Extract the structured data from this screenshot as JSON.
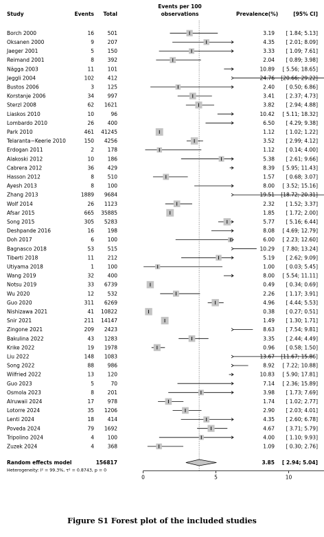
{
  "headers": {
    "study": "Study",
    "events": "Events",
    "total": "Total",
    "effect_line1": "Events per 100",
    "effect_line2": "observations",
    "prevalence": "Prevalence(%)",
    "ci": "[95% CI]"
  },
  "caption": "Figure S1 Forest plot of the included studies",
  "chart_data": {
    "type": "forest",
    "xlim": [
      0,
      20
    ],
    "xticks": [
      0,
      5,
      10,
      15
    ],
    "reference_line": 3.85,
    "studies": [
      {
        "study": "Borch 2000",
        "events": "16",
        "total": "501",
        "est": 3.19,
        "lo": 1.84,
        "hi": 5.13,
        "prev": "3.19",
        "ci": "[ 1.84; 5.13]",
        "w": 2.2
      },
      {
        "study": "Oksanen 2000",
        "events": "9",
        "total": "207",
        "est": 4.35,
        "lo": 2.01,
        "hi": 8.09,
        "prev": "4.35",
        "ci": "[ 2.01; 8.09]",
        "w": 2.0
      },
      {
        "study": "Jaeger 2001",
        "events": "5",
        "total": "150",
        "est": 3.33,
        "lo": 1.09,
        "hi": 7.61,
        "prev": "3.33",
        "ci": "[ 1.09; 7.61]",
        "w": 1.9
      },
      {
        "study": "Reimand 2001",
        "events": "8",
        "total": "392",
        "est": 2.04,
        "lo": 0.89,
        "hi": 3.98,
        "prev": "2.04",
        "ci": "[ 0.89; 3.98]",
        "w": 2.1
      },
      {
        "study": "Nägga 2003",
        "events": "11",
        "total": "101",
        "est": 10.89,
        "lo": 5.56,
        "hi": 18.65,
        "prev": "10.89",
        "ci": "[ 5.56; 18.65]",
        "w": 1.7
      },
      {
        "study": "Jeggli 2004",
        "events": "102",
        "total": "412",
        "est": 24.76,
        "lo": 20.66,
        "hi": 29.22,
        "prev": "24.76",
        "ci": "[20.66; 29.22]",
        "w": 2.0
      },
      {
        "study": "Bustos 2006",
        "events": "3",
        "total": "125",
        "est": 2.4,
        "lo": 0.5,
        "hi": 6.86,
        "prev": "2.40",
        "ci": "[ 0.50; 6.86]",
        "w": 1.8
      },
      {
        "study": "Korstanje 2006",
        "events": "34",
        "total": "997",
        "est": 3.41,
        "lo": 2.37,
        "hi": 4.73,
        "prev": "3.41",
        "ci": "[ 2.37; 4.73]",
        "w": 2.3
      },
      {
        "study": "Sterzl 2008",
        "events": "62",
        "total": "1621",
        "est": 3.82,
        "lo": 2.94,
        "hi": 4.88,
        "prev": "3.82",
        "ci": "[ 2.94; 4.88]",
        "w": 2.4
      },
      {
        "study": "Liaskos 2010",
        "events": "10",
        "total": "96",
        "est": 10.42,
        "lo": 5.11,
        "hi": 18.32,
        "prev": "10.42",
        "ci": "[ 5.11; 18.32]",
        "w": 1.7
      },
      {
        "study": "Lombardo 2010",
        "events": "26",
        "total": "400",
        "est": 6.5,
        "lo": 4.29,
        "hi": 9.38,
        "prev": "6.50",
        "ci": "[ 4.29; 9.38]",
        "w": 2.1
      },
      {
        "study": "Park 2010",
        "events": "461",
        "total": "41245",
        "est": 1.12,
        "lo": 1.02,
        "hi": 1.22,
        "prev": "1.12",
        "ci": "[ 1.02; 1.22]",
        "w": 2.6
      },
      {
        "study": "Telaranta−Keerie 2010",
        "events": "150",
        "total": "4256",
        "est": 3.52,
        "lo": 2.99,
        "hi": 4.12,
        "prev": "3.52",
        "ci": "[ 2.99; 4.12]",
        "w": 2.5
      },
      {
        "study": "Erdogan 2011",
        "events": "2",
        "total": "178",
        "est": 1.12,
        "lo": 0.14,
        "hi": 4.0,
        "prev": "1.12",
        "ci": "[ 0.14; 4.00]",
        "w": 1.8
      },
      {
        "study": "Alakoski 2012",
        "events": "10",
        "total": "186",
        "est": 5.38,
        "lo": 2.61,
        "hi": 9.66,
        "prev": "5.38",
        "ci": "[ 2.61; 9.66]",
        "w": 1.9
      },
      {
        "study": "Cabrera 2012",
        "events": "36",
        "total": "429",
        "est": 8.39,
        "lo": 5.95,
        "hi": 11.43,
        "prev": "8.39",
        "ci": "[ 5.95; 11.43]",
        "w": 2.1
      },
      {
        "study": "Hasson 2012",
        "events": "8",
        "total": "510",
        "est": 1.57,
        "lo": 0.68,
        "hi": 3.07,
        "prev": "1.57",
        "ci": "[ 0.68; 3.07]",
        "w": 2.1
      },
      {
        "study": "Ayesh 2013",
        "events": "8",
        "total": "100",
        "est": 8.0,
        "lo": 3.52,
        "hi": 15.16,
        "prev": "8.00",
        "ci": "[ 3.52; 15.16]",
        "w": 1.7
      },
      {
        "study": "Zhang 2013",
        "events": "1889",
        "total": "9684",
        "est": 19.51,
        "lo": 18.72,
        "hi": 20.31,
        "prev": "19.51",
        "ci": "[18.72; 20.31]",
        "w": 2.5
      },
      {
        "study": "Wolf 2014",
        "events": "26",
        "total": "1123",
        "est": 2.32,
        "lo": 1.52,
        "hi": 3.37,
        "prev": "2.32",
        "ci": "[ 1.52; 3.37]",
        "w": 2.3
      },
      {
        "study": "Afsar 2015",
        "events": "665",
        "total": "35885",
        "est": 1.85,
        "lo": 1.72,
        "hi": 2.0,
        "prev": "1.85",
        "ci": "[ 1.72; 2.00]",
        "w": 2.6
      },
      {
        "study": "Song 2015",
        "events": "305",
        "total": "5283",
        "est": 5.77,
        "lo": 5.16,
        "hi": 6.44,
        "prev": "5.77",
        "ci": "[ 5.16; 6.44]",
        "w": 2.5
      },
      {
        "study": "Deshpande 2016",
        "events": "16",
        "total": "198",
        "est": 8.08,
        "lo": 4.69,
        "hi": 12.79,
        "prev": "8.08",
        "ci": "[ 4.69; 12.79]",
        "w": 1.9
      },
      {
        "study": "Doh 2017",
        "events": "6",
        "total": "100",
        "est": 6.0,
        "lo": 2.23,
        "hi": 12.6,
        "prev": "6.00",
        "ci": "[ 2.23; 12.60]",
        "w": 1.7
      },
      {
        "study": "Bagnasco 2018",
        "events": "53",
        "total": "515",
        "est": 10.29,
        "lo": 7.8,
        "hi": 13.24,
        "prev": "10.29",
        "ci": "[ 7.80; 13.24]",
        "w": 2.1
      },
      {
        "study": "Tiberti 2018",
        "events": "11",
        "total": "212",
        "est": 5.19,
        "lo": 2.62,
        "hi": 9.09,
        "prev": "5.19",
        "ci": "[ 2.62; 9.09]",
        "w": 2.0
      },
      {
        "study": "Utiyama 2018",
        "events": "1",
        "total": "100",
        "est": 1.0,
        "lo": 0.03,
        "hi": 5.45,
        "prev": "1.00",
        "ci": "[ 0.03; 5.45]",
        "w": 1.7
      },
      {
        "study": "Wang 2019",
        "events": "32",
        "total": "400",
        "est": 8.0,
        "lo": 5.54,
        "hi": 11.11,
        "prev": "8.00",
        "ci": "[ 5.54; 11.11]",
        "w": 2.1
      },
      {
        "study": "Notsu 2019",
        "events": "33",
        "total": "6739",
        "est": 0.49,
        "lo": 0.34,
        "hi": 0.69,
        "prev": "0.49",
        "ci": "[ 0.34; 0.69]",
        "w": 2.5
      },
      {
        "study": "Wu 2020",
        "events": "12",
        "total": "532",
        "est": 2.26,
        "lo": 1.17,
        "hi": 3.91,
        "prev": "2.26",
        "ci": "[ 1.17; 3.91]",
        "w": 2.1
      },
      {
        "study": "Guo 2020",
        "events": "311",
        "total": "6269",
        "est": 4.96,
        "lo": 4.44,
        "hi": 5.53,
        "prev": "4.96",
        "ci": "[ 4.44; 5.53]",
        "w": 2.5
      },
      {
        "study": "Nishizawa 2021",
        "events": "41",
        "total": "10822",
        "est": 0.38,
        "lo": 0.27,
        "hi": 0.51,
        "prev": "0.38",
        "ci": "[ 0.27; 0.51]",
        "w": 2.5
      },
      {
        "study": "Snir 2021",
        "events": "211",
        "total": "14147",
        "est": 1.49,
        "lo": 1.3,
        "hi": 1.71,
        "prev": "1.49",
        "ci": "[ 1.30; 1.71]",
        "w": 2.6
      },
      {
        "study": "Zingone 2021",
        "events": "209",
        "total": "2423",
        "est": 8.63,
        "lo": 7.54,
        "hi": 9.81,
        "prev": "8.63",
        "ci": "[ 7.54; 9.81]",
        "w": 2.4
      },
      {
        "study": "Bakulina 2022",
        "events": "43",
        "total": "1283",
        "est": 3.35,
        "lo": 2.44,
        "hi": 4.49,
        "prev": "3.35",
        "ci": "[ 2.44; 4.49]",
        "w": 2.3
      },
      {
        "study": "Krike 2022",
        "events": "19",
        "total": "1978",
        "est": 0.96,
        "lo": 0.58,
        "hi": 1.5,
        "prev": "0.96",
        "ci": "[ 0.58; 1.50]",
        "w": 2.4
      },
      {
        "study": "Liu 2022",
        "events": "148",
        "total": "1083",
        "est": 13.67,
        "lo": 11.67,
        "hi": 15.86,
        "prev": "13.67",
        "ci": "[11.67; 15.86]",
        "w": 2.3
      },
      {
        "study": "Song 2022",
        "events": "88",
        "total": "986",
        "est": 8.92,
        "lo": 7.22,
        "hi": 10.88,
        "prev": "8.92",
        "ci": "[ 7.22; 10.88]",
        "w": 2.3
      },
      {
        "study": "Wilfried 2022",
        "events": "13",
        "total": "120",
        "est": 10.83,
        "lo": 5.9,
        "hi": 17.81,
        "prev": "10.83",
        "ci": "[ 5.90; 17.81]",
        "w": 1.8
      },
      {
        "study": "Guo 2023",
        "events": "5",
        "total": "70",
        "est": 7.14,
        "lo": 2.36,
        "hi": 15.89,
        "prev": "7.14",
        "ci": "[ 2.36; 15.89]",
        "w": 1.6
      },
      {
        "study": "Osmola 2023",
        "events": "8",
        "total": "201",
        "est": 3.98,
        "lo": 1.73,
        "hi": 7.69,
        "prev": "3.98",
        "ci": "[ 1.73; 7.69]",
        "w": 1.9
      },
      {
        "study": "Alruwaii 2024",
        "events": "17",
        "total": "978",
        "est": 1.74,
        "lo": 1.02,
        "hi": 2.77,
        "prev": "1.74",
        "ci": "[ 1.02; 2.77]",
        "w": 2.3
      },
      {
        "study": "Lotorre 2024",
        "events": "35",
        "total": "1206",
        "est": 2.9,
        "lo": 2.03,
        "hi": 4.01,
        "prev": "2.90",
        "ci": "[ 2.03; 4.01]",
        "w": 2.3
      },
      {
        "study": "Lenti 2024",
        "events": "18",
        "total": "414",
        "est": 4.35,
        "lo": 2.6,
        "hi": 6.78,
        "prev": "4.35",
        "ci": "[ 2.60; 6.78]",
        "w": 2.1
      },
      {
        "study": "Poveda 2024",
        "events": "79",
        "total": "1692",
        "est": 4.67,
        "lo": 3.71,
        "hi": 5.79,
        "prev": "4.67",
        "ci": "[ 3.71; 5.79]",
        "w": 2.4
      },
      {
        "study": "Tripolino 2024",
        "events": "4",
        "total": "100",
        "est": 4.0,
        "lo": 1.1,
        "hi": 9.93,
        "prev": "4.00",
        "ci": "[ 1.10; 9.93]",
        "w": 1.7
      },
      {
        "study": "Zuzek 2024",
        "events": "4",
        "total": "368",
        "est": 1.09,
        "lo": 0.3,
        "hi": 2.76,
        "prev": "1.09",
        "ci": "[ 0.30; 2.76]",
        "w": 2.0
      }
    ],
    "pooled": {
      "label": "Random effects model",
      "total": "156817",
      "est": 3.85,
      "lo": 2.94,
      "hi": 5.04,
      "prev": "3.85",
      "ci": "[ 2.94; 5.04]",
      "heterogeneity": "Heterogeneity: I² = 99.3%, τ² = 0.8743, p = 0"
    }
  }
}
